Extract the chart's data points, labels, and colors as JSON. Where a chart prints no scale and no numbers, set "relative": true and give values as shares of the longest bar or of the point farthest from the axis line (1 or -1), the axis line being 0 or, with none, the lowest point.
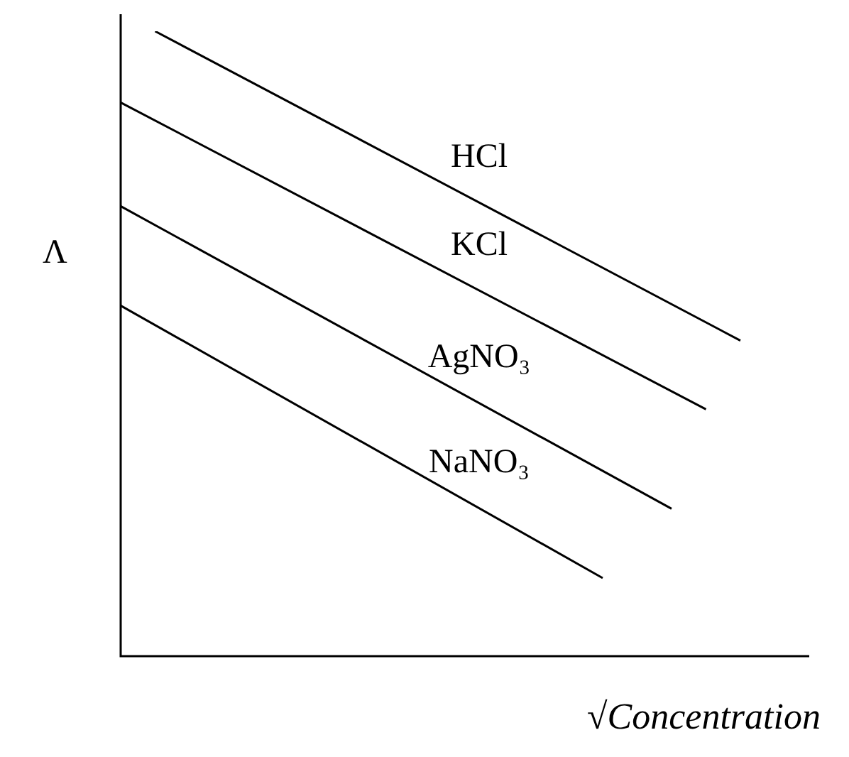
{
  "chart_data": {
    "type": "line",
    "relative": true,
    "ylabel": "Λ",
    "xlabel": "√Concentration",
    "legend": false,
    "marker": "none",
    "line_style": "solid",
    "categories": [
      null,
      null,
      null,
      null,
      null,
      null,
      null,
      null,
      null,
      null,
      null,
      null,
      null,
      null,
      null,
      null,
      null,
      null,
      null,
      null,
      null
    ],
    "series": [
      {
        "name": "HCl",
        "color": "#000000",
        "values": [
          null,
          1,
          null,
          null,
          null,
          null,
          null,
          null,
          null,
          null,
          null,
          null,
          null,
          null,
          null,
          null,
          null,
          null,
          0.505,
          null,
          null
        ]
      },
      {
        "name": "KCl",
        "color": "#000000",
        "values": [
          0.886,
          null,
          null,
          null,
          null,
          null,
          null,
          null,
          null,
          null,
          null,
          null,
          null,
          null,
          null,
          null,
          null,
          0.395,
          null,
          null,
          null
        ]
      },
      {
        "name": "AgNO₃",
        "color": "#000000",
        "values": [
          0.72,
          null,
          null,
          null,
          null,
          null,
          null,
          null,
          null,
          null,
          null,
          null,
          null,
          null,
          null,
          null,
          0.236,
          null,
          null,
          null,
          null
        ]
      },
      {
        "name": "NaNO₃",
        "color": "#000000",
        "values": [
          0.561,
          null,
          null,
          null,
          null,
          null,
          null,
          null,
          null,
          null,
          null,
          null,
          null,
          null,
          0.125,
          null,
          null,
          null,
          null,
          null,
          null
        ]
      }
    ]
  }
}
